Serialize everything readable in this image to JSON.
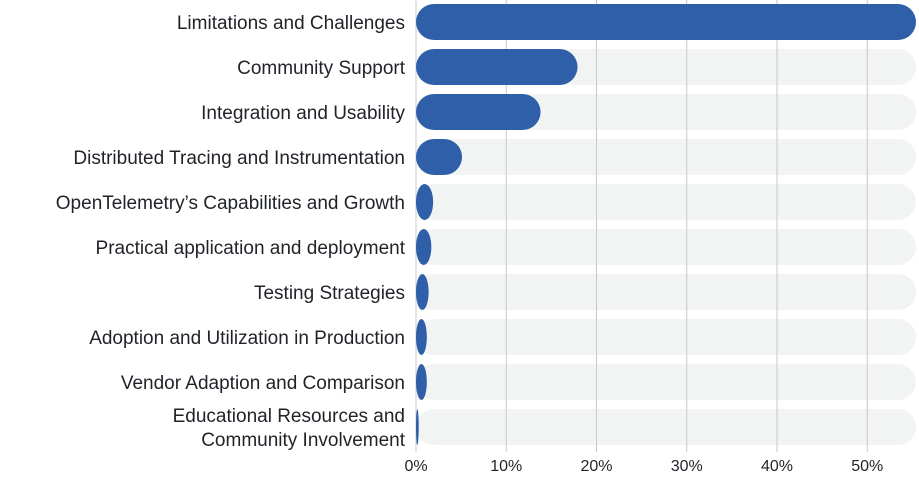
{
  "chart_data": {
    "type": "bar",
    "orientation": "horizontal",
    "categories": [
      "Limitations and Challenges",
      "Community Support",
      "Integration and Usability",
      "Distributed Tracing and Instrumentation",
      "OpenTelemetry’s Capabilities and Growth",
      "Practical application and deployment",
      "Testing Strategies",
      "Adoption and Utilization in Production",
      "Vendor Adaption and Comparison",
      "Educational Resources and\nCommunity Involvement"
    ],
    "values": [
      55.4,
      17.9,
      13.8,
      5.1,
      1.9,
      1.7,
      1.4,
      1.2,
      1.2,
      0.3
    ],
    "unit": "%",
    "xlim": [
      0,
      55.4
    ],
    "xticks": [
      0,
      10,
      20,
      30,
      40,
      50
    ],
    "xtick_labels": [
      "0%",
      "10%",
      "20%",
      "30%",
      "40%",
      "50%"
    ],
    "title": "",
    "xlabel": "",
    "ylabel": "",
    "grid": "vertical",
    "legend": "none",
    "colors": {
      "bar": "#2f5fa8",
      "track": "#f2f4f4",
      "grid": "#c8c8c8"
    }
  }
}
